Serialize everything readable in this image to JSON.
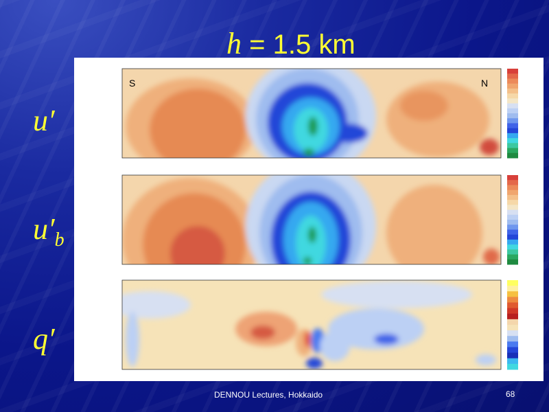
{
  "slide": {
    "title_variable": "h",
    "title_rest": "= 1.5 km",
    "rows": [
      {
        "symbol": "u",
        "prime": "′"
      },
      {
        "symbol": "u",
        "prime": "′",
        "subscript": "b"
      },
      {
        "symbol": "q",
        "prime": "′"
      }
    ],
    "south_label": "S",
    "north_label": "N",
    "footer": "DENNOU Lectures, Hokkaido",
    "page_number": "68"
  }
}
